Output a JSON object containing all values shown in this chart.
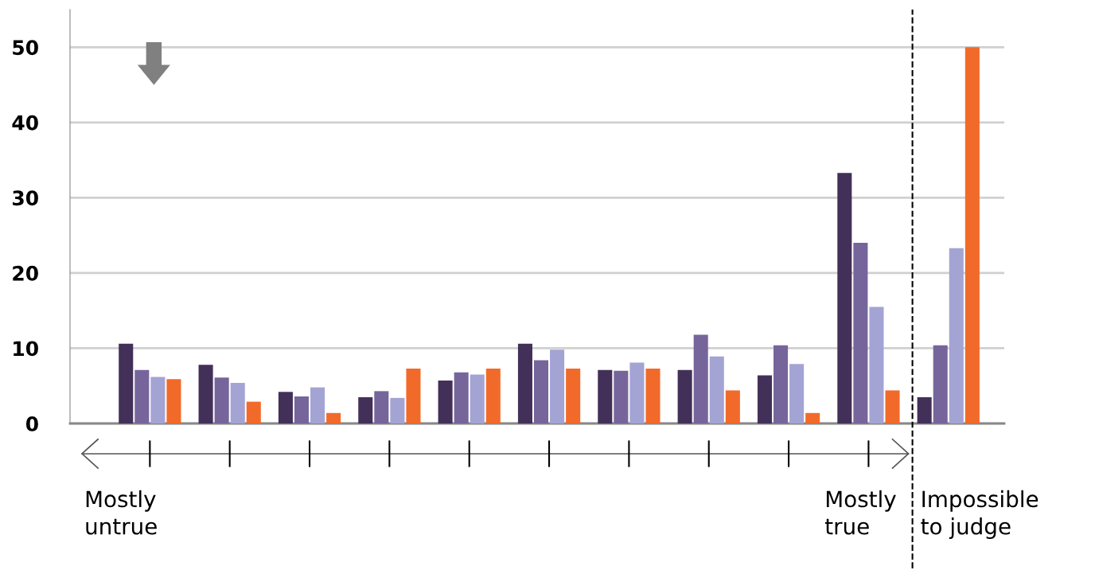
{
  "chart_data": {
    "type": "bar",
    "categories": [
      null,
      null,
      null,
      null,
      null,
      null,
      null,
      null,
      null,
      null,
      null
    ],
    "series": [
      {
        "color": "#433059",
        "values": [
          10.6,
          7.8,
          4.2,
          3.5,
          5.7,
          10.6,
          7.1,
          7.1,
          6.4,
          33.3,
          3.5
        ]
      },
      {
        "color": "#76659b",
        "values": [
          7.1,
          6.1,
          3.6,
          4.3,
          6.8,
          8.4,
          7.0,
          11.8,
          10.4,
          24.0,
          10.4
        ]
      },
      {
        "color": "#a3a3d4",
        "values": [
          6.2,
          5.4,
          4.8,
          3.4,
          6.5,
          9.8,
          8.1,
          8.9,
          7.9,
          15.5,
          23.3
        ]
      },
      {
        "color": "#f26a2a",
        "values": [
          5.9,
          2.9,
          1.4,
          7.3,
          7.3,
          7.3,
          7.3,
          4.4,
          1.4,
          4.4,
          50
        ]
      }
    ],
    "ylim": [
      0,
      55
    ],
    "yticks": [
      0,
      10,
      20,
      30,
      40,
      50
    ],
    "grid": "y",
    "legend": false,
    "annotations": [
      "Mostly untrue",
      "Mostly true",
      "Impossible to judge"
    ]
  }
}
